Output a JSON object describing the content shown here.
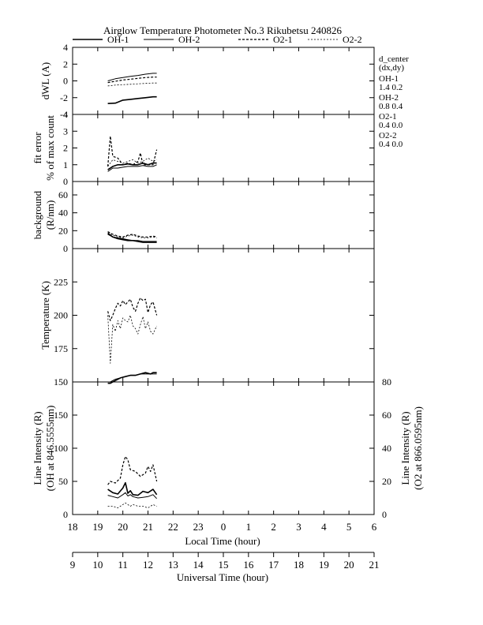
{
  "title": "Airglow Temperature Photometer No.3  Rikubetsu    240826",
  "legend": [
    {
      "name": "OH-1",
      "dash": "",
      "width": 1.6
    },
    {
      "name": "OH-2",
      "dash": "",
      "width": 1.0
    },
    {
      "name": "O2-1",
      "dash": "3,2",
      "width": 1.2
    },
    {
      "name": "O2-2",
      "dash": "2,2",
      "width": 0.8
    }
  ],
  "side_info": {
    "header1": "d_center",
    "header2": "(dx,dy)",
    "rows": [
      {
        "name": "OH-1",
        "values": "1.4   0.2"
      },
      {
        "name": "OH-2",
        "values": "0.8   0.4"
      },
      {
        "name": "O2-1",
        "values": "0.4   0.0"
      },
      {
        "name": "O2-2",
        "values": "0.4   0.0"
      }
    ]
  },
  "xaxis_local": {
    "label": "Local Time (hour)",
    "ticks": [
      "18",
      "19",
      "20",
      "21",
      "22",
      "23",
      "0",
      "1",
      "2",
      "3",
      "4",
      "5",
      "6"
    ]
  },
  "xaxis_ut": {
    "label": "Universal Time (hour)",
    "ticks": [
      "9",
      "10",
      "11",
      "12",
      "13",
      "14",
      "15",
      "16",
      "17",
      "18",
      "19",
      "20",
      "21"
    ]
  },
  "chart_data": [
    {
      "type": "line",
      "ylabel": "dWL (A)",
      "ylim": [
        -4,
        4
      ],
      "yticks": [
        "-4",
        "-2",
        "0",
        "2",
        "4"
      ],
      "x_unit": "local time (hour)",
      "series": [
        {
          "name": "OH-1",
          "x": [
            19.4,
            19.7,
            20.0,
            20.3,
            20.6,
            20.9,
            21.2,
            21.35
          ],
          "y": [
            -2.7,
            -2.65,
            -2.3,
            -2.2,
            -2.1,
            -2.0,
            -1.9,
            -1.9
          ]
        },
        {
          "name": "OH-2",
          "x": [
            19.4,
            19.7,
            20.0,
            20.3,
            20.6,
            20.9,
            21.2,
            21.35
          ],
          "y": [
            0.0,
            0.25,
            0.4,
            0.55,
            0.65,
            0.8,
            0.9,
            0.9
          ]
        },
        {
          "name": "O2-1",
          "x": [
            19.4,
            19.7,
            20.0,
            20.3,
            20.6,
            20.9,
            21.2,
            21.35
          ],
          "y": [
            -0.2,
            -0.05,
            0.1,
            0.2,
            0.3,
            0.4,
            0.45,
            0.45
          ]
        },
        {
          "name": "O2-2",
          "x": [
            19.4,
            19.7,
            20.0,
            20.3,
            20.6,
            20.9,
            21.2,
            21.35
          ],
          "y": [
            -0.6,
            -0.5,
            -0.45,
            -0.4,
            -0.35,
            -0.3,
            -0.25,
            -0.25
          ]
        }
      ]
    },
    {
      "type": "line",
      "ylabel": "fit error",
      "ylabel2": "% of max count",
      "ylim": [
        0,
        4
      ],
      "yticks": [
        "0",
        "1",
        "2",
        "3",
        "4"
      ],
      "series": [
        {
          "name": "OH-1",
          "x": [
            19.4,
            19.6,
            19.8,
            20.0,
            20.2,
            20.4,
            20.6,
            20.8,
            21.0,
            21.2,
            21.35
          ],
          "y": [
            0.7,
            0.9,
            1.0,
            1.0,
            1.05,
            1.0,
            1.0,
            1.1,
            1.0,
            1.1,
            1.1
          ]
        },
        {
          "name": "OH-2",
          "x": [
            19.4,
            19.6,
            19.8,
            20.0,
            20.2,
            20.4,
            20.6,
            20.8,
            21.0,
            21.2,
            21.35
          ],
          "y": [
            0.6,
            0.8,
            0.8,
            0.85,
            0.9,
            0.9,
            0.9,
            0.95,
            0.9,
            0.9,
            1.0
          ]
        },
        {
          "name": "O2-1",
          "x": [
            19.4,
            19.5,
            19.6,
            19.8,
            20.0,
            20.2,
            20.4,
            20.6,
            20.7,
            20.8,
            21.0,
            21.2,
            21.35
          ],
          "y": [
            0.9,
            2.7,
            1.5,
            1.4,
            1.0,
            1.1,
            1.0,
            1.2,
            1.7,
            1.0,
            1.0,
            1.0,
            1.9
          ]
        },
        {
          "name": "O2-2",
          "x": [
            19.4,
            19.6,
            19.8,
            20.0,
            20.2,
            20.4,
            20.6,
            20.8,
            21.0,
            21.2,
            21.35
          ],
          "y": [
            0.9,
            1.3,
            1.2,
            1.1,
            1.2,
            1.3,
            1.1,
            1.2,
            1.4,
            1.2,
            1.3
          ]
        }
      ]
    },
    {
      "type": "line",
      "ylabel": "background",
      "ylabel2": "(R/nm)",
      "ylim": [
        0,
        75
      ],
      "yticks": [
        "0",
        "20",
        "40",
        "60"
      ],
      "series": [
        {
          "name": "OH-1",
          "x": [
            19.4,
            19.6,
            19.8,
            20.0,
            20.2,
            20.4,
            20.6,
            20.8,
            21.0,
            21.2,
            21.35
          ],
          "y": [
            17,
            13,
            11,
            10,
            9,
            9,
            8,
            7,
            7,
            7,
            7
          ]
        },
        {
          "name": "OH-2",
          "x": [
            19.4,
            19.6,
            19.8,
            20.0,
            20.2,
            20.4,
            20.6,
            20.8,
            21.0,
            21.2,
            21.35
          ],
          "y": [
            16,
            13,
            12,
            11,
            10,
            9,
            9,
            8,
            8,
            8,
            8
          ]
        },
        {
          "name": "O2-1",
          "x": [
            19.4,
            19.6,
            19.8,
            20.0,
            20.2,
            20.4,
            20.6,
            20.8,
            21.0,
            21.2,
            21.35
          ],
          "y": [
            19,
            16,
            14,
            13,
            15,
            16,
            14,
            13,
            13,
            14,
            13
          ]
        },
        {
          "name": "O2-2",
          "x": [
            19.4,
            19.6,
            19.8,
            20.0,
            20.2,
            20.4,
            20.6,
            20.8,
            21.0,
            21.2,
            21.35
          ],
          "y": [
            18,
            15,
            13,
            12,
            14,
            15,
            13,
            12,
            12,
            13,
            12
          ]
        }
      ]
    },
    {
      "type": "line",
      "ylabel": "Temperature (K)",
      "ylim": [
        150,
        250
      ],
      "yticks": [
        "150",
        "175",
        "200",
        "225"
      ],
      "series": [
        {
          "name": "OH-1",
          "x": [
            19.4,
            19.5,
            19.7,
            19.9,
            20.1,
            20.3,
            20.5,
            20.7,
            20.9,
            21.1,
            21.2,
            21.35
          ],
          "y": [
            149,
            149,
            151,
            153,
            154,
            155,
            155,
            156,
            157,
            156,
            157,
            157
          ]
        },
        {
          "name": "OH-2",
          "x": [
            19.4,
            19.5,
            19.7,
            19.9,
            20.1,
            20.3,
            20.5,
            20.7,
            20.9,
            21.1,
            21.2,
            21.35
          ],
          "y": [
            150,
            150,
            152,
            153,
            154,
            155,
            155,
            156,
            156,
            156,
            156,
            156
          ]
        },
        {
          "name": "O2-1",
          "x": [
            19.4,
            19.5,
            19.6,
            19.7,
            19.8,
            19.9,
            20.0,
            20.1,
            20.2,
            20.3,
            20.4,
            20.5,
            20.6,
            20.7,
            20.8,
            20.9,
            21.0,
            21.1,
            21.2,
            21.35
          ],
          "y": [
            203,
            196,
            200,
            205,
            209,
            207,
            211,
            208,
            210,
            212,
            206,
            203,
            209,
            213,
            211,
            212,
            202,
            208,
            210,
            200
          ]
        },
        {
          "name": "O2-2",
          "x": [
            19.4,
            19.5,
            19.6,
            19.7,
            19.8,
            19.9,
            20.0,
            20.1,
            20.2,
            20.3,
            20.4,
            20.5,
            20.6,
            20.7,
            20.8,
            20.9,
            21.0,
            21.1,
            21.2,
            21.35
          ],
          "y": [
            200,
            164,
            193,
            188,
            196,
            190,
            198,
            196,
            195,
            200,
            192,
            190,
            186,
            193,
            199,
            190,
            195,
            188,
            186,
            192
          ]
        }
      ]
    },
    {
      "type": "line",
      "ylabel": "Line Intensity (R)",
      "ylabel2": "(OH at 846.5555nm)",
      "ylabel_right": "Line Intensity (R)",
      "ylabel_right2": "(O2 at 866.0595nm)",
      "ylim": [
        0,
        200
      ],
      "ylim_right": [
        0,
        80
      ],
      "yticks": [
        "0",
        "50",
        "100",
        "150"
      ],
      "yticks_right": [
        "0",
        "20",
        "40",
        "60",
        "80"
      ],
      "series": [
        {
          "name": "OH-1",
          "x": [
            19.4,
            19.6,
            19.8,
            20.0,
            20.1,
            20.2,
            20.3,
            20.4,
            20.6,
            20.8,
            21.0,
            21.2,
            21.35
          ],
          "y": [
            38,
            33,
            31,
            40,
            48,
            32,
            36,
            30,
            29,
            35,
            33,
            38,
            30
          ]
        },
        {
          "name": "OH-2",
          "x": [
            19.4,
            19.6,
            19.8,
            20.0,
            20.1,
            20.2,
            20.3,
            20.4,
            20.6,
            20.8,
            21.0,
            21.2,
            21.35
          ],
          "y": [
            29,
            27,
            25,
            30,
            33,
            28,
            30,
            27,
            25,
            26,
            27,
            30,
            24
          ]
        },
        {
          "name": "O2-1",
          "x": [
            19.4,
            19.5,
            19.7,
            19.9,
            20.0,
            20.1,
            20.2,
            20.3,
            20.5,
            20.7,
            20.9,
            21.0,
            21.1,
            21.2,
            21.35
          ],
          "y": [
            18,
            20,
            19,
            22,
            30,
            35,
            33,
            27,
            26,
            23,
            25,
            29,
            26,
            30,
            20
          ],
          "axis": "right"
        },
        {
          "name": "O2-2",
          "x": [
            19.4,
            19.6,
            19.8,
            20.0,
            20.1,
            20.2,
            20.3,
            20.4,
            20.6,
            20.8,
            21.0,
            21.2,
            21.35
          ],
          "y": [
            5,
            5,
            4,
            6,
            7,
            6,
            5,
            6,
            5,
            5,
            4,
            6,
            5
          ],
          "axis": "right"
        }
      ]
    }
  ]
}
